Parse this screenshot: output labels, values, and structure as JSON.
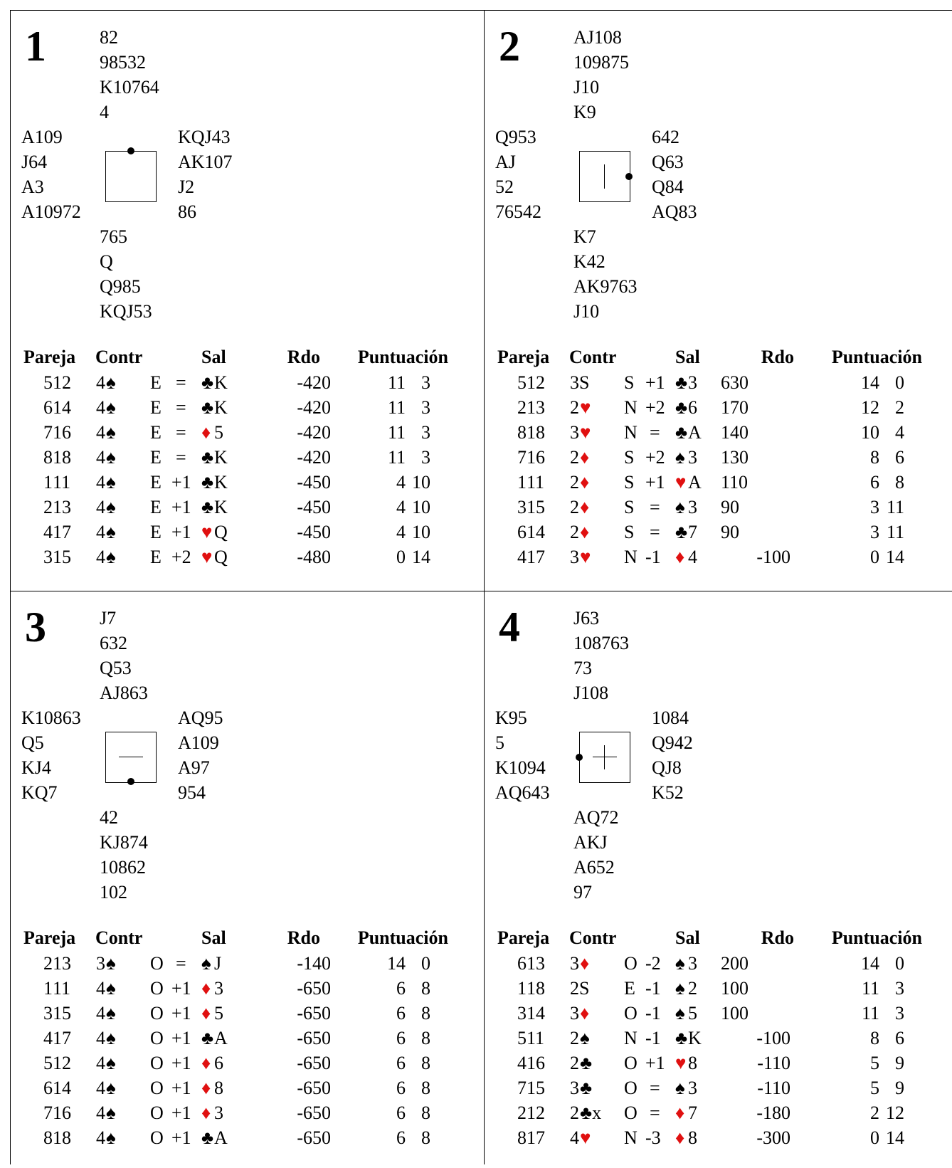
{
  "headers": {
    "pareja": "Pareja",
    "contr": "Contr",
    "sal": "Sal",
    "rdo": "Rdo",
    "puntuacion": "Puntuación"
  },
  "boards": [
    {
      "number": "1",
      "dealer": "N",
      "vulnerability": "none",
      "north": [
        "82",
        "98532",
        "K10764",
        "4"
      ],
      "west": [
        "A109",
        "J64",
        "A3",
        "A10972"
      ],
      "east": [
        "KQJ43",
        "AK107",
        "J2",
        "86"
      ],
      "south": [
        "765",
        "Q",
        "Q985",
        "KQJ53"
      ],
      "rows": [
        {
          "p1": "5",
          "p2": "12",
          "level": "4",
          "suit": "♠",
          "suit_color": "black",
          "decl": "E",
          "res": "=",
          "lead_suit": "♣",
          "lead_color": "black",
          "lead_card": "K",
          "rdo": "-420",
          "s1": "11",
          "s2": "3"
        },
        {
          "p1": "6",
          "p2": "14",
          "level": "4",
          "suit": "♠",
          "suit_color": "black",
          "decl": "E",
          "res": "=",
          "lead_suit": "♣",
          "lead_color": "black",
          "lead_card": "K",
          "rdo": "-420",
          "s1": "11",
          "s2": "3"
        },
        {
          "p1": "7",
          "p2": "16",
          "level": "4",
          "suit": "♠",
          "suit_color": "black",
          "decl": "E",
          "res": "=",
          "lead_suit": "♦",
          "lead_color": "red",
          "lead_card": "5",
          "rdo": "-420",
          "s1": "11",
          "s2": "3"
        },
        {
          "p1": "8",
          "p2": "18",
          "level": "4",
          "suit": "♠",
          "suit_color": "black",
          "decl": "E",
          "res": "=",
          "lead_suit": "♣",
          "lead_color": "black",
          "lead_card": "K",
          "rdo": "-420",
          "s1": "11",
          "s2": "3"
        },
        {
          "p1": "1",
          "p2": "11",
          "level": "4",
          "suit": "♠",
          "suit_color": "black",
          "decl": "E",
          "res": "+1",
          "lead_suit": "♣",
          "lead_color": "black",
          "lead_card": "K",
          "rdo": "-450",
          "s1": "4",
          "s2": "10"
        },
        {
          "p1": "2",
          "p2": "13",
          "level": "4",
          "suit": "♠",
          "suit_color": "black",
          "decl": "E",
          "res": "+1",
          "lead_suit": "♣",
          "lead_color": "black",
          "lead_card": "K",
          "rdo": "-450",
          "s1": "4",
          "s2": "10"
        },
        {
          "p1": "4",
          "p2": "17",
          "level": "4",
          "suit": "♠",
          "suit_color": "black",
          "decl": "E",
          "res": "+1",
          "lead_suit": "♥",
          "lead_color": "red",
          "lead_card": "Q",
          "rdo": "-450",
          "s1": "4",
          "s2": "10"
        },
        {
          "p1": "3",
          "p2": "15",
          "level": "4",
          "suit": "♠",
          "suit_color": "black",
          "decl": "E",
          "res": "+2",
          "lead_suit": "♥",
          "lead_color": "red",
          "lead_card": "Q",
          "rdo": "-480",
          "s1": "0",
          "s2": "14"
        }
      ]
    },
    {
      "number": "2",
      "dealer": "E",
      "vulnerability": "ns",
      "north": [
        "AJ108",
        "109875",
        "J10",
        "K9"
      ],
      "west": [
        "Q953",
        "AJ",
        "52",
        "76542"
      ],
      "east": [
        "642",
        "Q63",
        "Q84",
        "AQ83"
      ],
      "south": [
        "K7",
        "K42",
        "AK9763",
        "J10"
      ],
      "rows": [
        {
          "p1": "5",
          "p2": "12",
          "level": "3S",
          "suit": "",
          "suit_color": "black",
          "decl": "S",
          "res": "+1",
          "lead_suit": "♣",
          "lead_color": "black",
          "lead_card": "3",
          "rdo": "630",
          "rdo_side": "ns",
          "s1": "14",
          "s2": "0"
        },
        {
          "p1": "2",
          "p2": "13",
          "level": "2",
          "suit": "♥",
          "suit_color": "red",
          "decl": "N",
          "res": "+2",
          "lead_suit": "♣",
          "lead_color": "black",
          "lead_card": "6",
          "rdo": "170",
          "rdo_side": "ns",
          "s1": "12",
          "s2": "2"
        },
        {
          "p1": "8",
          "p2": "18",
          "level": "3",
          "suit": "♥",
          "suit_color": "red",
          "decl": "N",
          "res": "=",
          "lead_suit": "♣",
          "lead_color": "black",
          "lead_card": "A",
          "rdo": "140",
          "rdo_side": "ns",
          "s1": "10",
          "s2": "4"
        },
        {
          "p1": "7",
          "p2": "16",
          "level": "2",
          "suit": "♦",
          "suit_color": "red",
          "decl": "S",
          "res": "+2",
          "lead_suit": "♠",
          "lead_color": "black",
          "lead_card": "3",
          "rdo": "130",
          "rdo_side": "ns",
          "s1": "8",
          "s2": "6"
        },
        {
          "p1": "1",
          "p2": "11",
          "level": "2",
          "suit": "♦",
          "suit_color": "red",
          "decl": "S",
          "res": "+1",
          "lead_suit": "♥",
          "lead_color": "red",
          "lead_card": "A",
          "rdo": "110",
          "rdo_side": "ns",
          "s1": "6",
          "s2": "8"
        },
        {
          "p1": "3",
          "p2": "15",
          "level": "2",
          "suit": "♦",
          "suit_color": "red",
          "decl": "S",
          "res": "=",
          "lead_suit": "♠",
          "lead_color": "black",
          "lead_card": "3",
          "rdo": "90",
          "rdo_side": "ns",
          "s1": "3",
          "s2": "11"
        },
        {
          "p1": "6",
          "p2": "14",
          "level": "2",
          "suit": "♦",
          "suit_color": "red",
          "decl": "S",
          "res": "=",
          "lead_suit": "♣",
          "lead_color": "black",
          "lead_card": "7",
          "rdo": "90",
          "rdo_side": "ns",
          "s1": "3",
          "s2": "11"
        },
        {
          "p1": "4",
          "p2": "17",
          "level": "3",
          "suit": "♥",
          "suit_color": "red",
          "decl": "N",
          "res": "-1",
          "lead_suit": "♦",
          "lead_color": "red",
          "lead_card": "4",
          "rdo": "-100",
          "rdo_side": "ew",
          "s1": "0",
          "s2": "14"
        }
      ]
    },
    {
      "number": "3",
      "dealer": "S",
      "vulnerability": "ew",
      "north": [
        "J7",
        "632",
        "Q53",
        "AJ863"
      ],
      "west": [
        "K10863",
        "Q5",
        "KJ4",
        "KQ7"
      ],
      "east": [
        "AQ95",
        "A109",
        "A97",
        "954"
      ],
      "south": [
        "42",
        "KJ874",
        "10862",
        "102"
      ],
      "rows": [
        {
          "p1": "2",
          "p2": "13",
          "level": "3",
          "suit": "♠",
          "suit_color": "black",
          "decl": "O",
          "res": "=",
          "lead_suit": "♠",
          "lead_color": "black",
          "lead_card": "J",
          "rdo": "-140",
          "s1": "14",
          "s2": "0"
        },
        {
          "p1": "1",
          "p2": "11",
          "level": "4",
          "suit": "♠",
          "suit_color": "black",
          "decl": "O",
          "res": "+1",
          "lead_suit": "♦",
          "lead_color": "red",
          "lead_card": "3",
          "rdo": "-650",
          "s1": "6",
          "s2": "8"
        },
        {
          "p1": "3",
          "p2": "15",
          "level": "4",
          "suit": "♠",
          "suit_color": "black",
          "decl": "O",
          "res": "+1",
          "lead_suit": "♦",
          "lead_color": "red",
          "lead_card": "5",
          "rdo": "-650",
          "s1": "6",
          "s2": "8"
        },
        {
          "p1": "4",
          "p2": "17",
          "level": "4",
          "suit": "♠",
          "suit_color": "black",
          "decl": "O",
          "res": "+1",
          "lead_suit": "♣",
          "lead_color": "black",
          "lead_card": "A",
          "rdo": "-650",
          "s1": "6",
          "s2": "8"
        },
        {
          "p1": "5",
          "p2": "12",
          "level": "4",
          "suit": "♠",
          "suit_color": "black",
          "decl": "O",
          "res": "+1",
          "lead_suit": "♦",
          "lead_color": "red",
          "lead_card": "6",
          "rdo": "-650",
          "s1": "6",
          "s2": "8"
        },
        {
          "p1": "6",
          "p2": "14",
          "level": "4",
          "suit": "♠",
          "suit_color": "black",
          "decl": "O",
          "res": "+1",
          "lead_suit": "♦",
          "lead_color": "red",
          "lead_card": "8",
          "rdo": "-650",
          "s1": "6",
          "s2": "8"
        },
        {
          "p1": "7",
          "p2": "16",
          "level": "4",
          "suit": "♠",
          "suit_color": "black",
          "decl": "O",
          "res": "+1",
          "lead_suit": "♦",
          "lead_color": "red",
          "lead_card": "3",
          "rdo": "-650",
          "s1": "6",
          "s2": "8"
        },
        {
          "p1": "8",
          "p2": "18",
          "level": "4",
          "suit": "♠",
          "suit_color": "black",
          "decl": "O",
          "res": "+1",
          "lead_suit": "♣",
          "lead_color": "black",
          "lead_card": "A",
          "rdo": "-650",
          "s1": "6",
          "s2": "8"
        }
      ]
    },
    {
      "number": "4",
      "dealer": "W",
      "vulnerability": "all",
      "north": [
        "J63",
        "108763",
        "73",
        "J108"
      ],
      "west": [
        "K95",
        "5",
        "K1094",
        "AQ643"
      ],
      "east": [
        "1084",
        "Q942",
        "QJ8",
        "K52"
      ],
      "south": [
        "AQ72",
        "AKJ",
        "A652",
        "97"
      ],
      "rows": [
        {
          "p1": "6",
          "p2": "13",
          "level": "3",
          "suit": "♦",
          "suit_color": "red",
          "decl": "O",
          "res": "-2",
          "lead_suit": "♠",
          "lead_color": "black",
          "lead_card": "3",
          "rdo": "200",
          "rdo_side": "ns",
          "s1": "14",
          "s2": "0"
        },
        {
          "p1": "1",
          "p2": "18",
          "level": "2S",
          "suit": "",
          "suit_color": "black",
          "decl": "E",
          "res": "-1",
          "lead_suit": "♠",
          "lead_color": "black",
          "lead_card": "2",
          "rdo": "100",
          "rdo_side": "ns",
          "s1": "11",
          "s2": "3"
        },
        {
          "p1": "3",
          "p2": "14",
          "level": "3",
          "suit": "♦",
          "suit_color": "red",
          "decl": "O",
          "res": "-1",
          "lead_suit": "♠",
          "lead_color": "black",
          "lead_card": "5",
          "rdo": "100",
          "rdo_side": "ns",
          "s1": "11",
          "s2": "3"
        },
        {
          "p1": "5",
          "p2": "11",
          "level": "2",
          "suit": "♠",
          "suit_color": "black",
          "decl": "N",
          "res": "-1",
          "lead_suit": "♣",
          "lead_color": "black",
          "lead_card": "K",
          "rdo": "-100",
          "rdo_side": "ew",
          "s1": "8",
          "s2": "6"
        },
        {
          "p1": "4",
          "p2": "16",
          "level": "2",
          "suit": "♣",
          "suit_color": "black",
          "decl": "O",
          "res": "+1",
          "lead_suit": "♥",
          "lead_color": "red",
          "lead_card": "8",
          "rdo": "-110",
          "rdo_side": "ew",
          "s1": "5",
          "s2": "9"
        },
        {
          "p1": "7",
          "p2": "15",
          "level": "3",
          "suit": "♣",
          "suit_color": "black",
          "decl": "O",
          "res": "=",
          "lead_suit": "♠",
          "lead_color": "black",
          "lead_card": "3",
          "rdo": "-110",
          "rdo_side": "ew",
          "s1": "5",
          "s2": "9"
        },
        {
          "p1": "2",
          "p2": "12",
          "level": "2",
          "suit": "♣x",
          "suit_color": "black",
          "decl": "O",
          "res": "=",
          "lead_suit": "♦",
          "lead_color": "red",
          "lead_card": "7",
          "rdo": "-180",
          "rdo_side": "ew",
          "s1": "2",
          "s2": "12"
        },
        {
          "p1": "8",
          "p2": "17",
          "level": "4",
          "suit": "♥",
          "suit_color": "red",
          "decl": "N",
          "res": "-3",
          "lead_suit": "♦",
          "lead_color": "red",
          "lead_card": "8",
          "rdo": "-300",
          "rdo_side": "ew",
          "s1": "0",
          "s2": "14"
        }
      ]
    }
  ]
}
